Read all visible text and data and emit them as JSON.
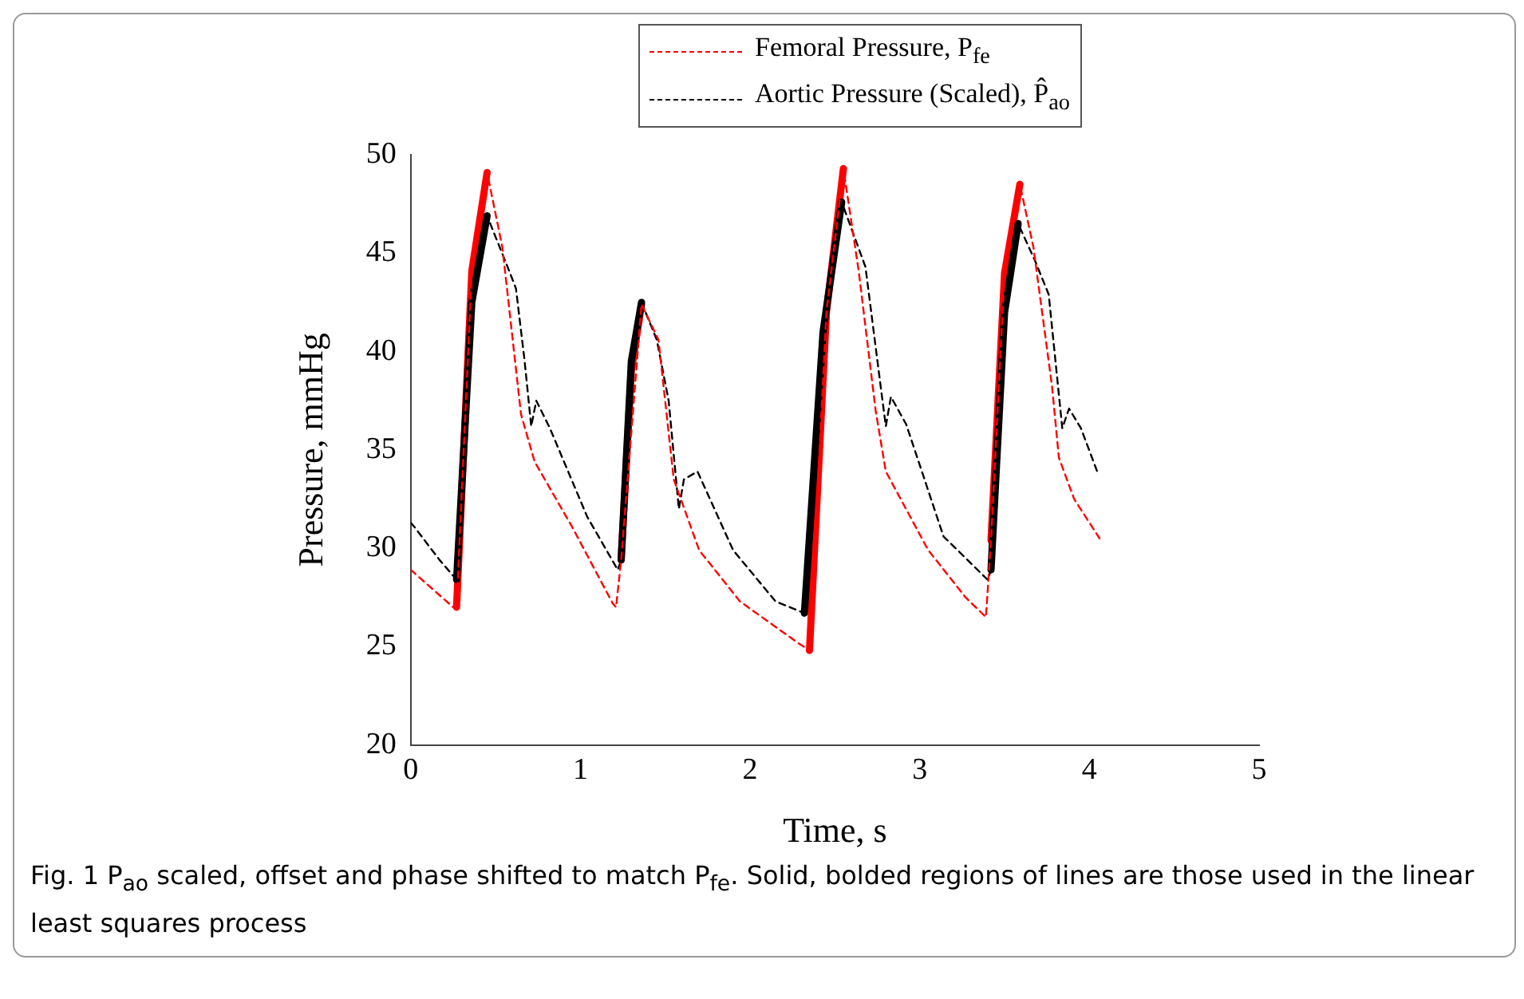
{
  "chart_data": {
    "type": "line",
    "xlabel": "Time, s",
    "ylabel": "Pressure, mmHg",
    "xlim": [
      0,
      5
    ],
    "ylim": [
      20,
      50
    ],
    "xticks": [
      0,
      1,
      2,
      3,
      4,
      5
    ],
    "yticks": [
      20,
      25,
      30,
      35,
      40,
      45,
      50
    ],
    "grid": false,
    "legend": "top",
    "marker": "none",
    "annotations": [
      "Fig. 1  P$_{ao}$ scaled, offset and phase shifted to match P$_{fe}$. Solid, bolded regions of lines are those used in the linear least squares process"
    ],
    "series": [
      {
        "name": "Femoral Pressure, P$_{fe}$",
        "color": "#ff0000",
        "line_style": "dashed",
        "x": [
          0,
          0.25,
          0.27,
          0.36,
          0.45,
          0.54,
          0.65,
          0.73,
          0.95,
          1.19,
          1.21,
          1.24,
          1.36,
          1.46,
          1.55,
          1.7,
          1.94,
          2.28,
          2.35,
          2.45,
          2.55,
          2.64,
          2.74,
          2.8,
          3.05,
          3.27,
          3.39,
          3.42,
          3.5,
          3.59,
          3.67,
          3.78,
          3.82,
          3.91,
          4.06
        ],
        "values": [
          28.9,
          27.0,
          27.0,
          44.1,
          49.1,
          45.3,
          36.8,
          34.4,
          31.1,
          27.2,
          27.0,
          29.4,
          42.4,
          40.6,
          33.5,
          29.9,
          27.3,
          25.2,
          24.8,
          42.0,
          49.3,
          44.1,
          37.0,
          33.9,
          29.9,
          27.5,
          26.5,
          30.4,
          44.0,
          48.5,
          45.3,
          38.2,
          34.6,
          32.5,
          30.5
        ]
      },
      {
        "name": "Aortic Pressure (Scaled), P̂$_{ao}$",
        "color": "#000000",
        "line_style": "dashed",
        "x": [
          0,
          0.02,
          0.17,
          0.27,
          0.36,
          0.45,
          0.58,
          0.62,
          0.67,
          0.71,
          0.74,
          0.82,
          1.04,
          1.22,
          1.24,
          1.3,
          1.36,
          1.45,
          1.52,
          1.58,
          1.61,
          1.69,
          1.9,
          2.15,
          2.32,
          2.43,
          2.54,
          2.68,
          2.77,
          2.8,
          2.83,
          2.92,
          3.14,
          3.4,
          3.42,
          3.5,
          3.58,
          3.68,
          3.76,
          3.84,
          3.88,
          3.95,
          4.05
        ],
        "values": [
          31.3,
          31.1,
          29.4,
          28.4,
          42.5,
          46.9,
          44.1,
          43.2,
          39.6,
          36.2,
          37.5,
          36.1,
          31.6,
          28.9,
          29.4,
          39.5,
          42.5,
          40.6,
          37.5,
          32.0,
          33.5,
          33.9,
          29.9,
          27.3,
          26.7,
          41.0,
          47.6,
          44.3,
          38.2,
          36.2,
          37.7,
          36.3,
          30.6,
          28.4,
          28.9,
          42.0,
          46.5,
          44.6,
          42.9,
          36.1,
          37.1,
          36.1,
          33.8
        ]
      },
      {
        "color": "#000000",
        "line_style": "solid",
        "x": [
          0.27,
          0.36,
          0.45,
          0.9,
          1.24,
          1.3,
          1.36,
          1.8,
          2.32,
          2.43,
          2.54,
          3.0,
          3.42,
          3.5,
          3.58
        ],
        "values": [
          28.4,
          42.5,
          46.9,
          null,
          29.4,
          39.5,
          42.5,
          null,
          26.7,
          41.0,
          47.6,
          null,
          28.9,
          42.0,
          46.5
        ]
      },
      {
        "color": "#ff0000",
        "line_style": "solid",
        "x": [
          0.27,
          0.36,
          0.45,
          0.9,
          1.24,
          1.3,
          1.36,
          1.8,
          2.35,
          2.45,
          2.55,
          3.0,
          3.42,
          3.5,
          3.59
        ],
        "values": [
          27.0,
          44.1,
          49.1,
          null,
          29.4,
          39.0,
          42.4,
          null,
          24.8,
          42.0,
          49.3,
          null,
          30.4,
          44.0,
          48.5
        ]
      }
    ]
  }
}
